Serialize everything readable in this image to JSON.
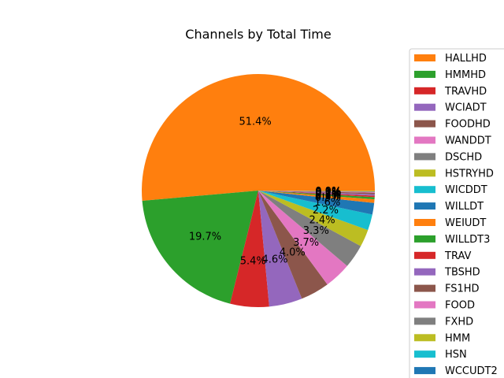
{
  "chart_data": {
    "type": "pie",
    "title": "Channels by Total Time",
    "start_angle_deg": 0,
    "direction": "counterclockwise",
    "slices": [
      {
        "label": "HALLHD",
        "value": 51.4,
        "pct_label": "51.4%",
        "color": "#ff7f0e"
      },
      {
        "label": "HMMHD",
        "value": 19.7,
        "pct_label": "19.7%",
        "color": "#2ca02c"
      },
      {
        "label": "TRAVHD",
        "value": 5.4,
        "pct_label": "5.4%",
        "color": "#d62728"
      },
      {
        "label": "WCIADT",
        "value": 4.6,
        "pct_label": "4.6%",
        "color": "#9467bd"
      },
      {
        "label": "FOODHD",
        "value": 4.0,
        "pct_label": "4.0%",
        "color": "#8c564b"
      },
      {
        "label": "WANDDT",
        "value": 3.7,
        "pct_label": "3.7%",
        "color": "#e377c2"
      },
      {
        "label": "DSCHD",
        "value": 3.3,
        "pct_label": "3.3%",
        "color": "#7f7f7f"
      },
      {
        "label": "HSTRYHD",
        "value": 2.4,
        "pct_label": "2.4%",
        "color": "#bcbd22"
      },
      {
        "label": "WICDDT",
        "value": 2.2,
        "pct_label": "2.2%",
        "color": "#17becf"
      },
      {
        "label": "WILLDT",
        "value": 1.6,
        "pct_label": "1.6%",
        "color": "#1f77b4"
      },
      {
        "label": "WEIUDT",
        "value": 0.5,
        "pct_label": "0.5%",
        "color": "#ff7f0e"
      },
      {
        "label": "WILLDT3",
        "value": 0.3,
        "pct_label": "0.3%",
        "color": "#2ca02c"
      },
      {
        "label": "TRAV",
        "value": 0.2,
        "pct_label": "0.2%",
        "color": "#d62728"
      },
      {
        "label": "TBSHD",
        "value": 0.2,
        "pct_label": "0.2%",
        "color": "#9467bd"
      },
      {
        "label": "FS1HD",
        "value": 0.2,
        "pct_label": "0.2%",
        "color": "#8c564b"
      },
      {
        "label": "FOOD",
        "value": 0.1,
        "pct_label": "0.1%",
        "color": "#e377c2"
      },
      {
        "label": "FXHD",
        "value": 0.1,
        "pct_label": "0.1%",
        "color": "#7f7f7f"
      },
      {
        "label": "HMM",
        "value": 0.1,
        "pct_label": "0.1%",
        "color": "#bcbd22"
      },
      {
        "label": "HSN",
        "value": 0.0,
        "pct_label": "0.0%",
        "color": "#17becf"
      },
      {
        "label": "WCCUDT2",
        "value": 0.0,
        "pct_label": "0.0%",
        "color": "#1f77b4"
      }
    ],
    "legend_placement": "right"
  }
}
